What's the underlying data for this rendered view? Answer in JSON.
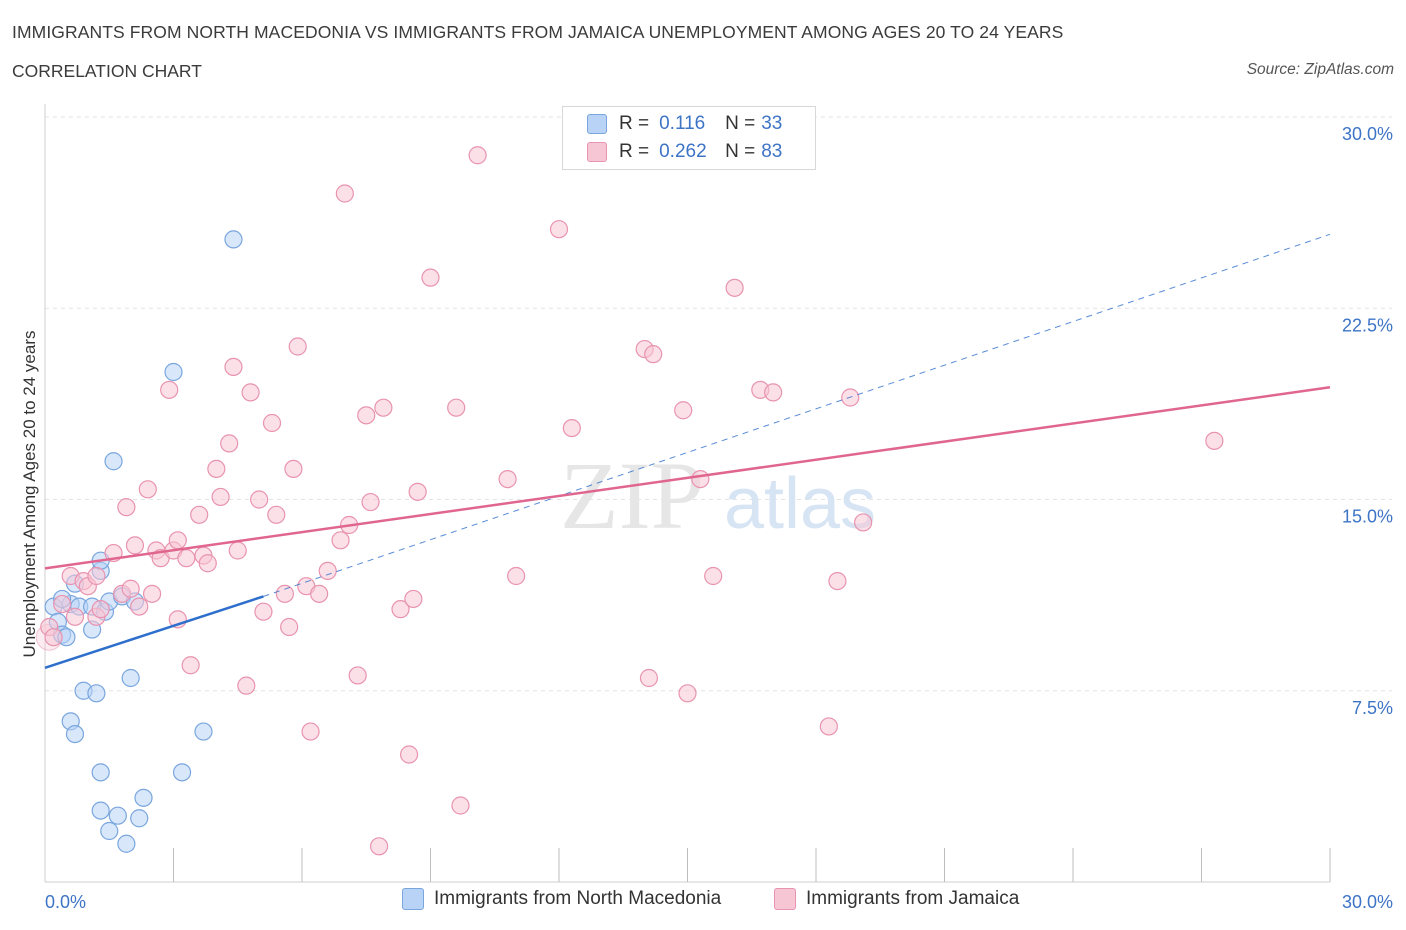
{
  "title": "IMMIGRANTS FROM NORTH MACEDONIA VS IMMIGRANTS FROM JAMAICA UNEMPLOYMENT AMONG AGES 20 TO 24 YEARS",
  "subtitle": "CORRELATION CHART",
  "source": "Source: ZipAtlas.com",
  "watermark": {
    "zip": "ZIP",
    "atlas": "atlas"
  },
  "colors": {
    "blue_fill": "#b8d3f5",
    "blue_stroke": "#7aa6de",
    "blue_line": "#2f6fcc",
    "pink_fill": "#f7c6d5",
    "pink_stroke": "#e893b0",
    "pink_line": "#e0668f",
    "axis_label": "#3d74c6",
    "grid": "#e3e3e3"
  },
  "legend_top": {
    "rows": [
      {
        "r_label": "R =",
        "r_value": "0.116",
        "n_label": "N =",
        "n_value": "33"
      },
      {
        "r_label": "R =",
        "r_value": "0.262",
        "n_label": "N =",
        "n_value": "83"
      }
    ]
  },
  "legend_bottom": {
    "items": [
      "Immigrants from North Macedonia",
      "Immigrants from Jamaica"
    ]
  },
  "chart_data": {
    "type": "scatter",
    "xlabel": "",
    "ylabel": "Unemployment Among Ages 20 to 24 years",
    "xlim": [
      0,
      30
    ],
    "ylim": [
      0,
      30
    ],
    "x_tick_labels": [
      {
        "value": 0,
        "label": "0.0%"
      },
      {
        "value": 30,
        "label": "30.0%"
      }
    ],
    "y_tick_labels": [
      {
        "value": 7.5,
        "label": "7.5%"
      },
      {
        "value": 15,
        "label": "15.0%"
      },
      {
        "value": 22.5,
        "label": "22.5%"
      },
      {
        "value": 30,
        "label": "30.0%"
      }
    ],
    "series": [
      {
        "name": "Immigrants from North Macedonia",
        "color": "blue",
        "trend": {
          "x": [
            0,
            5.1
          ],
          "y": [
            8.4,
            11.2
          ],
          "extended": {
            "x": [
              5.1,
              30
            ],
            "y": [
              11.2,
              25.4
            ]
          }
        },
        "points": [
          [
            0.2,
            10.8
          ],
          [
            0.3,
            10.2
          ],
          [
            0.4,
            9.7
          ],
          [
            0.5,
            9.6
          ],
          [
            0.6,
            10.9
          ],
          [
            0.4,
            11.1
          ],
          [
            0.7,
            11.7
          ],
          [
            0.8,
            10.8
          ],
          [
            1.1,
            10.8
          ],
          [
            0.9,
            7.5
          ],
          [
            0.6,
            6.3
          ],
          [
            0.7,
            5.8
          ],
          [
            1.1,
            9.9
          ],
          [
            1.4,
            10.6
          ],
          [
            1.5,
            11.0
          ],
          [
            1.3,
            12.2
          ],
          [
            1.3,
            12.6
          ],
          [
            1.8,
            11.2
          ],
          [
            2.1,
            11.0
          ],
          [
            1.6,
            16.5
          ],
          [
            1.2,
            7.4
          ],
          [
            2.0,
            8.0
          ],
          [
            1.3,
            4.3
          ],
          [
            1.3,
            2.8
          ],
          [
            1.5,
            2.0
          ],
          [
            1.7,
            2.6
          ],
          [
            1.9,
            1.5
          ],
          [
            2.2,
            2.5
          ],
          [
            2.3,
            3.3
          ],
          [
            3.2,
            4.3
          ],
          [
            3.7,
            5.9
          ],
          [
            3.0,
            20.0
          ],
          [
            4.4,
            25.2
          ]
        ]
      },
      {
        "name": "Immigrants from Jamaica",
        "color": "pink",
        "trend": {
          "x": [
            0,
            30
          ],
          "y": [
            12.3,
            19.4
          ]
        },
        "points": [
          [
            0.1,
            10.0
          ],
          [
            0.2,
            9.6
          ],
          [
            0.4,
            10.9
          ],
          [
            0.6,
            12.0
          ],
          [
            0.9,
            11.8
          ],
          [
            0.7,
            10.4
          ],
          [
            1.0,
            11.6
          ],
          [
            1.2,
            12.0
          ],
          [
            1.2,
            10.4
          ],
          [
            1.3,
            10.7
          ],
          [
            1.6,
            12.9
          ],
          [
            1.8,
            11.3
          ],
          [
            1.9,
            14.7
          ],
          [
            2.0,
            11.5
          ],
          [
            2.1,
            13.2
          ],
          [
            2.2,
            10.8
          ],
          [
            2.4,
            15.4
          ],
          [
            2.5,
            11.3
          ],
          [
            2.6,
            13.0
          ],
          [
            2.7,
            12.7
          ],
          [
            2.9,
            19.3
          ],
          [
            3.0,
            13.0
          ],
          [
            3.1,
            13.4
          ],
          [
            3.1,
            10.3
          ],
          [
            3.3,
            12.7
          ],
          [
            3.4,
            8.5
          ],
          [
            3.6,
            14.4
          ],
          [
            3.7,
            12.8
          ],
          [
            3.8,
            12.5
          ],
          [
            4.0,
            16.2
          ],
          [
            4.1,
            15.1
          ],
          [
            4.3,
            17.2
          ],
          [
            4.4,
            20.2
          ],
          [
            4.5,
            13.0
          ],
          [
            4.7,
            7.7
          ],
          [
            4.8,
            19.2
          ],
          [
            5.0,
            15.0
          ],
          [
            5.1,
            10.6
          ],
          [
            5.3,
            18.0
          ],
          [
            5.4,
            14.4
          ],
          [
            5.6,
            11.3
          ],
          [
            5.7,
            10.0
          ],
          [
            5.8,
            16.2
          ],
          [
            5.9,
            21.0
          ],
          [
            6.1,
            11.6
          ],
          [
            6.2,
            5.9
          ],
          [
            6.4,
            11.3
          ],
          [
            6.6,
            12.2
          ],
          [
            6.9,
            13.4
          ],
          [
            7.0,
            27.0
          ],
          [
            7.1,
            14.0
          ],
          [
            7.3,
            8.1
          ],
          [
            7.5,
            18.3
          ],
          [
            7.6,
            14.9
          ],
          [
            7.8,
            1.4
          ],
          [
            7.9,
            18.6
          ],
          [
            8.3,
            10.7
          ],
          [
            8.5,
            5.0
          ],
          [
            8.6,
            11.1
          ],
          [
            8.7,
            15.3
          ],
          [
            9.0,
            23.7
          ],
          [
            9.6,
            18.6
          ],
          [
            9.7,
            3.0
          ],
          [
            10.1,
            28.5
          ],
          [
            10.8,
            15.8
          ],
          [
            11.0,
            12.0
          ],
          [
            12.0,
            25.6
          ],
          [
            12.3,
            17.8
          ],
          [
            14.0,
            20.9
          ],
          [
            14.1,
            8.0
          ],
          [
            14.2,
            20.7
          ],
          [
            14.9,
            18.5
          ],
          [
            15.0,
            7.4
          ],
          [
            15.3,
            15.8
          ],
          [
            15.6,
            12.0
          ],
          [
            16.1,
            23.3
          ],
          [
            16.7,
            19.3
          ],
          [
            17.0,
            19.2
          ],
          [
            18.3,
            6.1
          ],
          [
            18.5,
            11.8
          ],
          [
            18.8,
            19.0
          ],
          [
            19.1,
            14.1
          ],
          [
            27.3,
            17.3
          ]
        ]
      }
    ]
  }
}
